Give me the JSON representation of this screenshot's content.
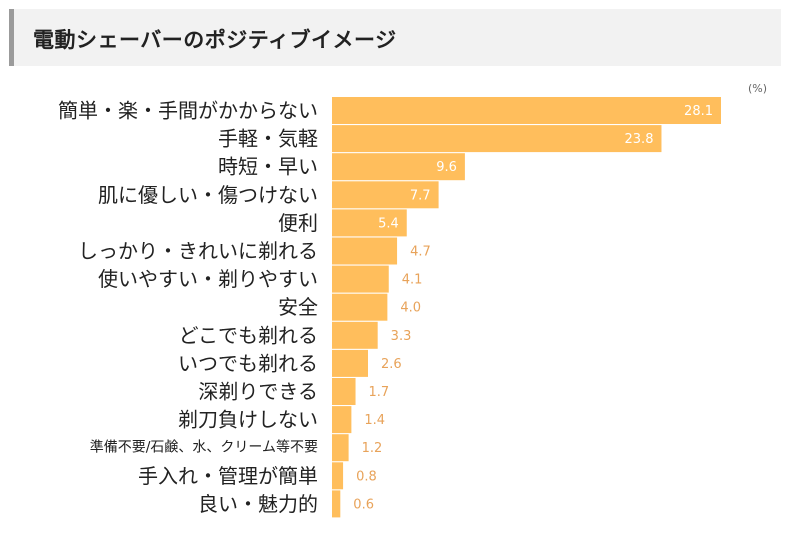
{
  "title": "電動シェーバーのポジティブイメージ",
  "unit_label": "(%)",
  "colors": {
    "bar": "#ffbe5c",
    "value_label_outside": "#e8a35a",
    "value_label_inside": "#ffffff",
    "category_label": "#222222",
    "header_bg": "#f2f2f2",
    "header_border": "#9b9b9b"
  },
  "chart_data": {
    "type": "bar",
    "orientation": "horizontal",
    "title": "電動シェーバーのポジティブイメージ",
    "unit": "%",
    "categories": [
      "簡単・楽・手間がかからない",
      "手軽・気軽",
      "時短・早い",
      "肌に優しい・傷つけない",
      "便利",
      "しっかり・きれいに剃れる",
      "使いやすい・剃りやすい",
      "安全",
      "どこでも剃れる",
      "いつでも剃れる",
      "深剃りできる",
      "剃刀負けしない",
      "準備不要/石鹸、水、クリーム等不要",
      "手入れ・管理が簡単",
      "良い・魅力的"
    ],
    "values": [
      28.1,
      23.8,
      9.6,
      7.7,
      5.4,
      4.7,
      4.1,
      4.0,
      3.3,
      2.6,
      1.7,
      1.4,
      1.2,
      0.8,
      0.6
    ],
    "value_labels": [
      "28.1",
      "23.8",
      "9.6",
      "7.7",
      "5.4",
      "4.7",
      "4.1",
      "4.0",
      "3.3",
      "2.6",
      "1.7",
      "1.4",
      "1.2",
      "0.8",
      "0.6"
    ],
    "xlim": [
      0,
      28.1
    ],
    "grid": false,
    "legend": "none"
  }
}
